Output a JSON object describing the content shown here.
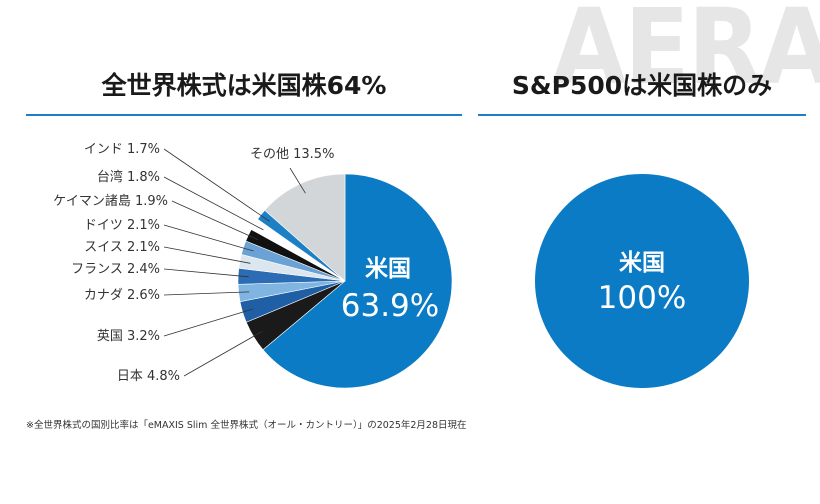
{
  "watermark": "AERA",
  "left_title": "全世界株式は米国株64%",
  "right_title": "S&P500は米国株のみ",
  "footnote": "※全世界株式の国別比率は「eMAXIS Slim 全世界株式（オール・カントリー）」の2025年2月28日現在",
  "chart_data": [
    {
      "type": "pie",
      "title": "全世界株式は米国株64%",
      "main_label": {
        "name": "米国",
        "value": "63.9%"
      },
      "slices": [
        {
          "name": "米国",
          "value": 63.9,
          "label": "",
          "color": "#0a7bc4"
        },
        {
          "name": "日本",
          "value": 4.8,
          "label": "日本 4.8%",
          "color": "#1a1a1a"
        },
        {
          "name": "英国",
          "value": 3.2,
          "label": "英国 3.2%",
          "color": "#1f5fa6"
        },
        {
          "name": "カナダ",
          "value": 2.6,
          "label": "カナダ 2.6%",
          "color": "#7fb5e0"
        },
        {
          "name": "フランス",
          "value": 2.4,
          "label": "フランス 2.4%",
          "color": "#2b6cb5"
        },
        {
          "name": "スイス",
          "value": 2.1,
          "label": "スイス 2.1%",
          "color": "#dce6ef"
        },
        {
          "name": "ドイツ",
          "value": 2.1,
          "label": "ドイツ 2.1%",
          "color": "#6aa2d6"
        },
        {
          "name": "ケイマン諸島",
          "value": 1.9,
          "label": "ケイマン諸島 1.9%",
          "color": "#111111"
        },
        {
          "name": "台湾",
          "value": 1.8,
          "label": "台湾 1.8%",
          "color": "#ffffff"
        },
        {
          "name": "インド",
          "value": 1.7,
          "label": "インド 1.7%",
          "color": "#1d7fc4"
        },
        {
          "name": "その他",
          "value": 13.5,
          "label": "その他 13.5%",
          "color": "#d3d6d9"
        }
      ]
    },
    {
      "type": "pie",
      "title": "S&P500は米国株のみ",
      "main_label": {
        "name": "米国",
        "value": "100%"
      },
      "slices": [
        {
          "name": "米国",
          "value": 100,
          "label": "",
          "color": "#0a7bc4"
        }
      ]
    }
  ]
}
